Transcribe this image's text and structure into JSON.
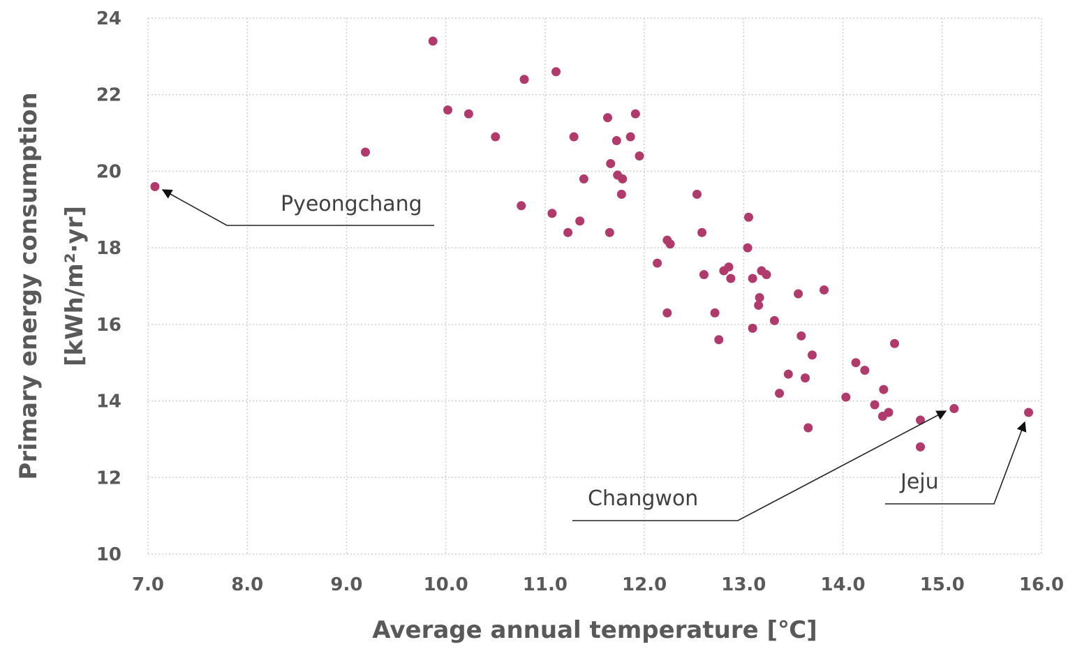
{
  "chart_data": {
    "type": "scatter",
    "title": "",
    "xlabel": "Average annual temperature [℃]",
    "ylabel": "Primary energy consumption",
    "ylabel_unit": "[kWh/m²·yr]",
    "xlim": [
      7.0,
      16.0
    ],
    "ylim": [
      10,
      24
    ],
    "xticks": [
      "7.0",
      "8.0",
      "9.0",
      "10.0",
      "11.0",
      "12.0",
      "13.0",
      "14.0",
      "15.0",
      "16.0"
    ],
    "yticks": [
      "10",
      "12",
      "14",
      "16",
      "18",
      "20",
      "22",
      "24"
    ],
    "grid": true,
    "point_color": "#b03a6b",
    "points": [
      {
        "x": 7.07,
        "y": 19.6
      },
      {
        "x": 9.19,
        "y": 20.5
      },
      {
        "x": 9.87,
        "y": 23.4
      },
      {
        "x": 10.02,
        "y": 21.6
      },
      {
        "x": 10.23,
        "y": 21.5
      },
      {
        "x": 10.5,
        "y": 20.9
      },
      {
        "x": 10.76,
        "y": 19.1
      },
      {
        "x": 10.79,
        "y": 22.4
      },
      {
        "x": 11.07,
        "y": 18.9
      },
      {
        "x": 11.11,
        "y": 22.6
      },
      {
        "x": 11.23,
        "y": 18.4
      },
      {
        "x": 11.29,
        "y": 20.9
      },
      {
        "x": 11.35,
        "y": 18.7
      },
      {
        "x": 11.39,
        "y": 19.8
      },
      {
        "x": 11.63,
        "y": 21.4
      },
      {
        "x": 11.65,
        "y": 18.4
      },
      {
        "x": 11.66,
        "y": 20.2
      },
      {
        "x": 11.72,
        "y": 20.8
      },
      {
        "x": 11.73,
        "y": 19.9
      },
      {
        "x": 11.77,
        "y": 19.4
      },
      {
        "x": 11.78,
        "y": 19.8
      },
      {
        "x": 11.86,
        "y": 20.9
      },
      {
        "x": 11.91,
        "y": 21.5
      },
      {
        "x": 11.95,
        "y": 20.4
      },
      {
        "x": 12.13,
        "y": 17.6
      },
      {
        "x": 12.23,
        "y": 18.2
      },
      {
        "x": 12.23,
        "y": 16.3
      },
      {
        "x": 12.26,
        "y": 18.1
      },
      {
        "x": 12.53,
        "y": 19.4
      },
      {
        "x": 12.58,
        "y": 18.4
      },
      {
        "x": 12.6,
        "y": 17.3
      },
      {
        "x": 12.71,
        "y": 16.3
      },
      {
        "x": 12.75,
        "y": 15.6
      },
      {
        "x": 12.8,
        "y": 17.4
      },
      {
        "x": 12.85,
        "y": 17.5
      },
      {
        "x": 12.87,
        "y": 17.2
      },
      {
        "x": 13.04,
        "y": 18.0
      },
      {
        "x": 13.05,
        "y": 18.8
      },
      {
        "x": 13.09,
        "y": 17.2
      },
      {
        "x": 13.09,
        "y": 15.9
      },
      {
        "x": 13.15,
        "y": 16.5
      },
      {
        "x": 13.16,
        "y": 16.7
      },
      {
        "x": 13.18,
        "y": 17.4
      },
      {
        "x": 13.23,
        "y": 17.3
      },
      {
        "x": 13.31,
        "y": 16.1
      },
      {
        "x": 13.36,
        "y": 14.2
      },
      {
        "x": 13.45,
        "y": 14.7
      },
      {
        "x": 13.55,
        "y": 16.8
      },
      {
        "x": 13.58,
        "y": 15.7
      },
      {
        "x": 13.62,
        "y": 14.6
      },
      {
        "x": 13.65,
        "y": 13.3
      },
      {
        "x": 13.69,
        "y": 15.2
      },
      {
        "x": 13.81,
        "y": 16.9
      },
      {
        "x": 14.03,
        "y": 14.1
      },
      {
        "x": 14.13,
        "y": 15.0
      },
      {
        "x": 14.22,
        "y": 14.8
      },
      {
        "x": 14.32,
        "y": 13.9
      },
      {
        "x": 14.4,
        "y": 13.6
      },
      {
        "x": 14.41,
        "y": 14.3
      },
      {
        "x": 14.46,
        "y": 13.7
      },
      {
        "x": 14.52,
        "y": 15.5
      },
      {
        "x": 14.78,
        "y": 13.5
      },
      {
        "x": 14.78,
        "y": 12.8
      },
      {
        "x": 15.12,
        "y": 13.8
      },
      {
        "x": 15.87,
        "y": 13.7
      }
    ],
    "annotations": [
      {
        "text": "Pyeongchang",
        "point": {
          "x": 7.07,
          "y": 19.6
        },
        "text_at": {
          "x": 8.45,
          "y": 19.15
        }
      },
      {
        "text": "Changwon",
        "point": {
          "x": 15.12,
          "y": 13.8
        },
        "text_at": {
          "x": 11.95,
          "y": 11.5
        }
      },
      {
        "text": "Jeju",
        "point": {
          "x": 15.87,
          "y": 13.7
        },
        "text_at": {
          "x": 14.99,
          "y": 11.9
        }
      }
    ]
  }
}
